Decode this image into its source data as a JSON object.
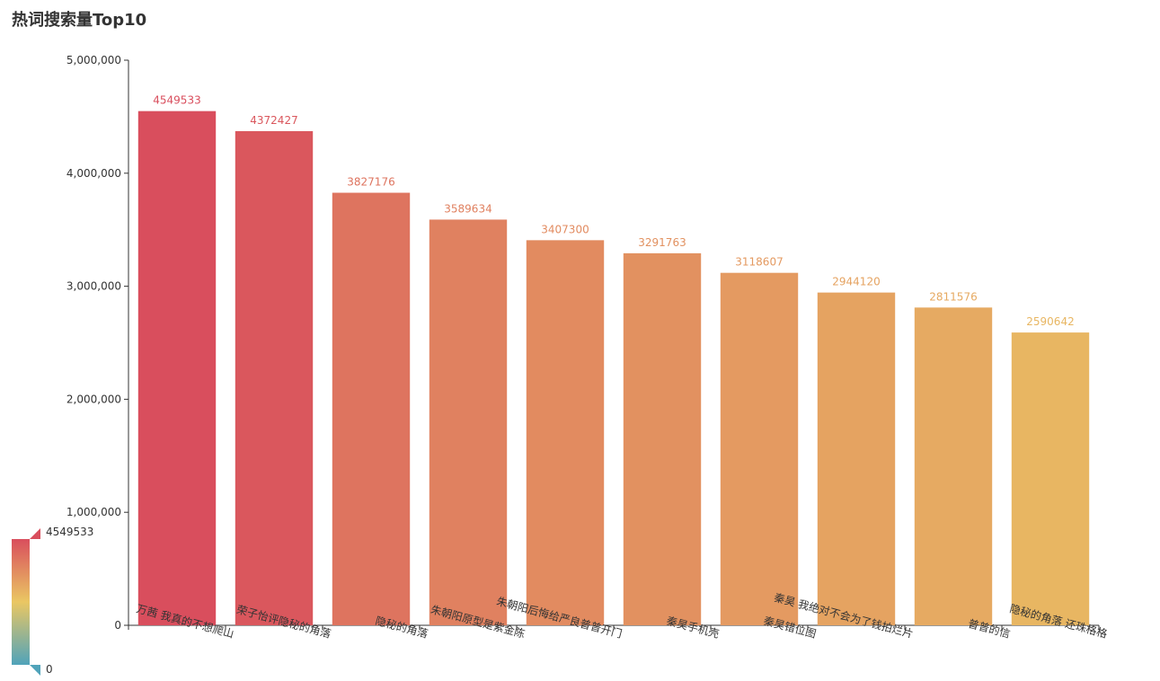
{
  "chart_data": {
    "type": "bar",
    "title": "热词搜索量Top10",
    "xlabel": "",
    "ylabel": "",
    "categories": [
      "万茜 我真的不想爬山",
      "荣子怡评隐秘的角落",
      "隐秘的角落",
      "朱朝阳原型是紫金陈",
      "朱朝阳后悔给严良普普开门",
      "秦昊手机壳",
      "秦昊错位图",
      "秦昊 我绝对不会为了钱拍烂片",
      "普普的信",
      "隐秘的角落 还珠格格"
    ],
    "values": [
      4549533,
      4372427,
      3827176,
      3589634,
      3407300,
      3291763,
      3118607,
      2944120,
      2811576,
      2590642
    ],
    "ylim": [
      0,
      5000000
    ],
    "yticks": [
      "0",
      "1,000,000",
      "2,000,000",
      "3,000,000",
      "4,000,000",
      "5,000,000"
    ],
    "grid": false,
    "visual_map": {
      "min": 0,
      "max": 4549533,
      "min_label": "0",
      "max_label": "4549533",
      "colors": [
        "#50a3ba",
        "#eac763",
        "#d94e5d"
      ]
    }
  }
}
